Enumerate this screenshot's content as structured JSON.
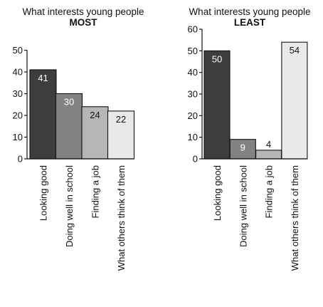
{
  "chart_data": [
    {
      "type": "bar",
      "title": "What interests young people",
      "subtitle": "MOST",
      "categories": [
        "Looking good",
        "Doing well in school",
        "Finding a job",
        "What others think of them"
      ],
      "values": [
        41,
        30,
        24,
        22
      ],
      "ylim": [
        0,
        50
      ],
      "yticks": [
        0,
        10,
        20,
        30,
        40,
        50
      ],
      "bar_colors": [
        "#3d3d3f",
        "#828284",
        "#b6b6b8",
        "#e8eae8"
      ],
      "label_colors": [
        "#ffffff",
        "#ffffff",
        "#111111",
        "#111111"
      ],
      "grid": false
    },
    {
      "type": "bar",
      "title": "What interests young people",
      "subtitle": "LEAST",
      "categories": [
        "Looking good",
        "Doing well in school",
        "Finding a job",
        "What others think of them"
      ],
      "values": [
        50,
        9,
        4,
        54
      ],
      "ylim": [
        0,
        60
      ],
      "yticks": [
        0,
        10,
        20,
        30,
        40,
        50,
        60
      ],
      "bar_colors": [
        "#3d3d3f",
        "#828284",
        "#b6b6b8",
        "#e8eae8"
      ],
      "label_colors": [
        "#ffffff",
        "#ffffff",
        "#111111",
        "#111111"
      ],
      "grid": false
    }
  ]
}
